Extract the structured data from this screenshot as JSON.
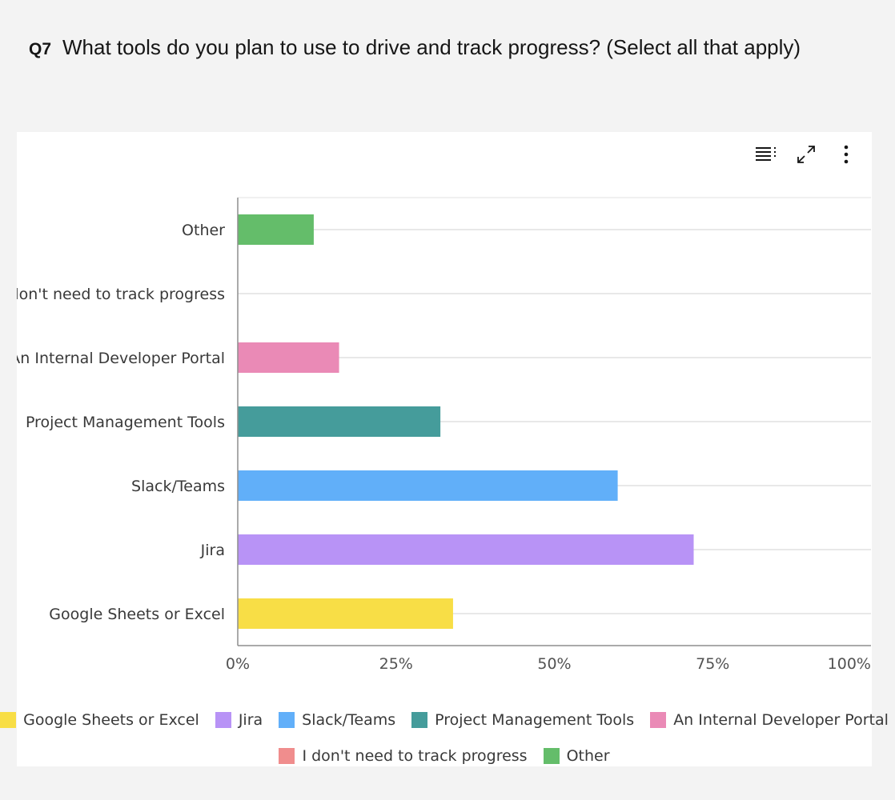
{
  "question": {
    "number": "Q7",
    "text": "What tools do you plan to use to drive and track progress? (Select all that apply)"
  },
  "toolbar": {
    "buttons": [
      "table-view-icon",
      "expand-icon",
      "more-options-icon"
    ]
  },
  "chart_data": {
    "type": "bar",
    "orientation": "horizontal",
    "categories": [
      "Google Sheets or Excel",
      "Jira",
      "Slack/Teams",
      "Project Management Tools",
      "An Internal Developer Portal",
      "I don't need to track progress",
      "Other"
    ],
    "values": [
      34,
      72,
      60,
      32,
      16,
      0,
      12
    ],
    "colors": [
      "#f8de46",
      "#b893f6",
      "#61aff9",
      "#459c9b",
      "#ea8ab6",
      "#f08d8d",
      "#64bd6a"
    ],
    "x_ticks": [
      "0%",
      "25%",
      "50%",
      "75%",
      "100%"
    ],
    "xlim": [
      0,
      100
    ],
    "grid": true,
    "legend": {
      "placement": "bottom",
      "rows": [
        [
          "Google Sheets or Excel",
          "Jira",
          "Slack/Teams",
          "Project Management Tools",
          "An Internal Developer Portal"
        ],
        [
          "I don't need to track progress",
          "Other"
        ]
      ]
    }
  }
}
